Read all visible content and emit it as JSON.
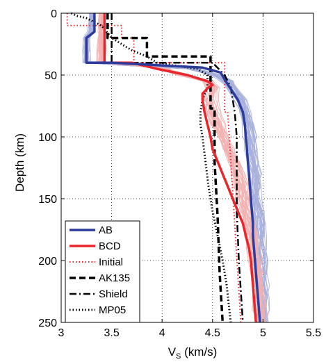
{
  "chart_data": {
    "type": "line",
    "xlabel": "V",
    "xlabel_sub": "S",
    "xlabel_unit": " (km/s)",
    "ylabel": "Depth (km)",
    "xlim": [
      3,
      5.5
    ],
    "ylim": [
      250,
      0
    ],
    "y_reversed": true,
    "grid": "dotted",
    "legend_position": "bottom-left",
    "xticks": [
      "3",
      "3.5",
      "4",
      "4.5",
      "5",
      "5.5"
    ],
    "yticks": [
      "0",
      "50",
      "100",
      "150",
      "200",
      "250"
    ],
    "xtick_values": [
      3,
      3.5,
      4,
      4.5,
      5,
      5.5
    ],
    "ytick_values": [
      0,
      50,
      100,
      150,
      200,
      250
    ],
    "colors": {
      "ab": "#2b3a9b",
      "bcd": "#e8262b",
      "ab_ensemble": "#a7b0dc",
      "bcd_ensemble": "#f2b1b1",
      "black": "#000000"
    },
    "ensembles": [
      {
        "name": "AB ensemble",
        "color": "#a7b0dc",
        "count": 30,
        "spread": 0.1,
        "depth": [
          0,
          5,
          10,
          15,
          20,
          30,
          40,
          42,
          45,
          50,
          55,
          60,
          70,
          80,
          90,
          100,
          110,
          120,
          130,
          140,
          150,
          160,
          170,
          180,
          190,
          200,
          210,
          220,
          230,
          240,
          250
        ],
        "vs": [
          3.3,
          3.3,
          3.3,
          3.3,
          3.25,
          3.25,
          3.25,
          3.6,
          4.3,
          4.55,
          4.65,
          4.7,
          4.78,
          4.82,
          4.85,
          4.87,
          4.88,
          4.9,
          4.92,
          4.93,
          4.92,
          4.95,
          4.96,
          4.96,
          4.97,
          4.98,
          4.98,
          4.99,
          5.0,
          5.0,
          5.0
        ]
      },
      {
        "name": "BCD ensemble",
        "color": "#f2b1b1",
        "count": 30,
        "spread": 0.12,
        "depth": [
          0,
          5,
          10,
          15,
          20,
          30,
          40,
          42,
          45,
          50,
          55,
          60,
          70,
          80,
          90,
          100,
          110,
          120,
          130,
          140,
          150,
          160,
          170,
          180,
          190,
          200,
          210,
          220,
          230,
          240,
          250
        ],
        "vs": [
          3.4,
          3.4,
          3.4,
          3.4,
          3.4,
          3.4,
          3.4,
          3.7,
          4.0,
          4.2,
          4.45,
          4.5,
          4.48,
          4.5,
          4.55,
          4.6,
          4.65,
          4.7,
          4.74,
          4.78,
          4.8,
          4.83,
          4.86,
          4.88,
          4.9,
          4.92,
          4.94,
          4.95,
          4.96,
          4.97,
          4.98
        ]
      }
    ],
    "series": [
      {
        "name": "AB",
        "color": "#2b3a9b",
        "style": "solid",
        "width": 3.5,
        "depth": [
          0,
          10,
          15,
          20,
          30,
          40,
          40,
          44,
          48,
          55,
          60,
          70,
          80,
          90,
          100,
          110,
          120,
          130,
          140,
          150,
          160,
          170,
          180,
          200,
          220,
          250
        ],
        "vs": [
          3.33,
          3.33,
          3.33,
          3.25,
          3.25,
          3.25,
          3.5,
          4.4,
          4.58,
          4.63,
          4.67,
          4.75,
          4.8,
          4.82,
          4.83,
          4.84,
          4.85,
          4.86,
          4.87,
          4.88,
          4.89,
          4.9,
          4.9,
          4.92,
          4.94,
          4.97
        ]
      },
      {
        "name": "BCD",
        "color": "#e8262b",
        "style": "solid",
        "width": 3.5,
        "depth": [
          0,
          40,
          40,
          45,
          50,
          55,
          58,
          60,
          65,
          70,
          80,
          90,
          100,
          110,
          120,
          130,
          140,
          150,
          160,
          170,
          180,
          190,
          200,
          220,
          250
        ],
        "vs": [
          3.43,
          3.43,
          3.7,
          3.95,
          4.25,
          4.45,
          4.5,
          4.46,
          4.4,
          4.4,
          4.42,
          4.45,
          4.48,
          4.5,
          4.55,
          4.6,
          4.65,
          4.7,
          4.75,
          4.8,
          4.83,
          4.86,
          4.88,
          4.9,
          4.93
        ]
      },
      {
        "name": "Initial",
        "color": "#e8262b",
        "style": "dotted",
        "width": 2,
        "depth": [
          0,
          10,
          10,
          20,
          20,
          40,
          40,
          80,
          80,
          250
        ],
        "vs": [
          3.06,
          3.06,
          3.6,
          3.6,
          3.72,
          3.72,
          4.62,
          4.62,
          4.65,
          4.78
        ]
      },
      {
        "name": "AK135",
        "color": "#000000",
        "style": "dashed",
        "width": 3.5,
        "depth": [
          0,
          20,
          20,
          35,
          35,
          77,
          77,
          120,
          165,
          210,
          250
        ],
        "vs": [
          3.46,
          3.46,
          3.85,
          3.85,
          4.48,
          4.48,
          4.52,
          4.52,
          4.55,
          4.57,
          4.6
        ]
      },
      {
        "name": "Shield",
        "color": "#000000",
        "style": "dashdot",
        "width": 2.5,
        "depth": [
          0,
          40,
          40,
          50,
          60,
          80,
          100,
          120,
          140,
          160,
          180,
          200,
          250
        ],
        "vs": [
          3.5,
          3.5,
          4.5,
          4.62,
          4.68,
          4.72,
          4.74,
          4.74,
          4.74,
          4.74,
          4.75,
          4.76,
          4.8
        ]
      },
      {
        "name": "MP05",
        "color": "#000000",
        "style": "dotted",
        "width": 3,
        "depth": [
          0,
          2,
          4,
          6,
          10,
          15,
          20,
          25,
          30,
          35,
          40,
          42,
          45,
          50,
          60,
          70,
          80,
          90,
          100,
          120,
          140,
          160,
          180,
          200,
          220,
          250
        ],
        "vs": [
          3.1,
          3.15,
          3.25,
          3.3,
          3.4,
          3.45,
          3.5,
          3.6,
          3.7,
          3.85,
          3.95,
          4.1,
          4.35,
          4.45,
          4.45,
          4.4,
          4.38,
          4.38,
          4.4,
          4.43,
          4.46,
          4.5,
          4.55,
          4.6,
          4.64,
          4.68
        ]
      }
    ],
    "legend": [
      {
        "label": "AB",
        "color": "#2b3a9b",
        "style": "solid"
      },
      {
        "label": "BCD",
        "color": "#e8262b",
        "style": "solid"
      },
      {
        "label": "Initial",
        "color": "#e8262b",
        "style": "dotted"
      },
      {
        "label": "AK135",
        "color": "#000000",
        "style": "dashed"
      },
      {
        "label": "Shield",
        "color": "#000000",
        "style": "dashdot"
      },
      {
        "label": "MP05",
        "color": "#000000",
        "style": "dotted"
      }
    ]
  }
}
